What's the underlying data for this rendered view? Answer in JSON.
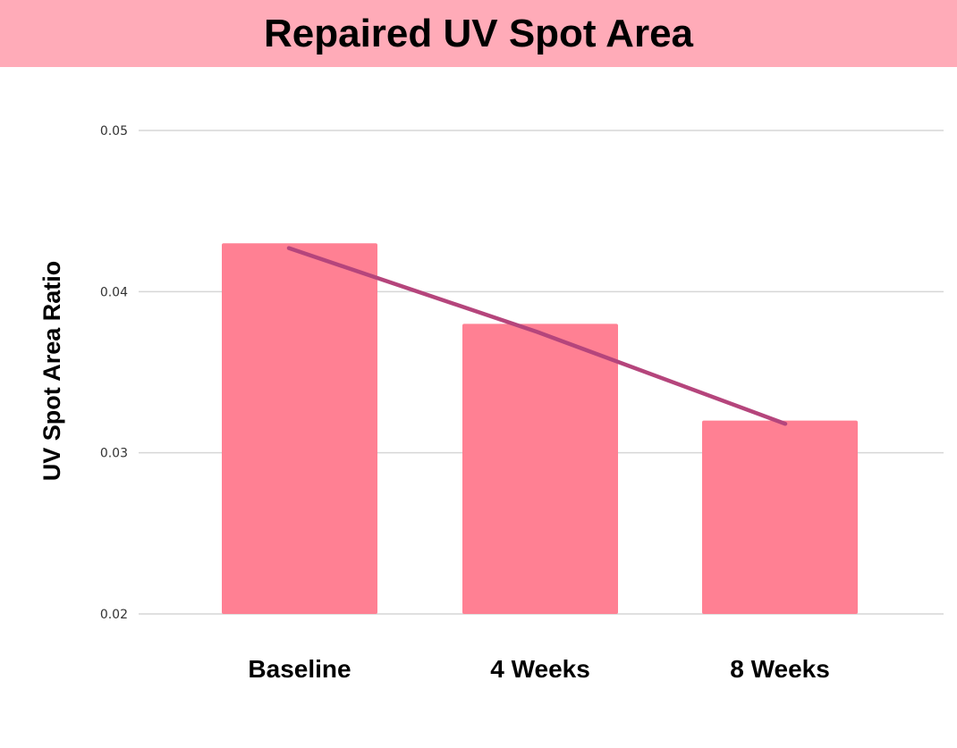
{
  "chart_data": {
    "type": "bar",
    "title": "Repaired UV Spot Area",
    "xlabel": "",
    "ylabel": "UV Spot Area Ratio",
    "categories": [
      "Baseline",
      "4 Weeks",
      "8 Weeks"
    ],
    "values": [
      0.043,
      0.038,
      0.032
    ],
    "trendline": [
      0.0427,
      0.0375,
      0.0318
    ],
    "ylim": [
      0.02,
      0.05
    ],
    "yticks": [
      "0.02",
      "0.03",
      "0.04",
      "0.05"
    ],
    "grid": true,
    "legend": "none",
    "colors": {
      "bar": "#ff8093",
      "line": "#b5457c",
      "title_band": "#ffabb8",
      "grid": "#d6d6d6"
    }
  }
}
